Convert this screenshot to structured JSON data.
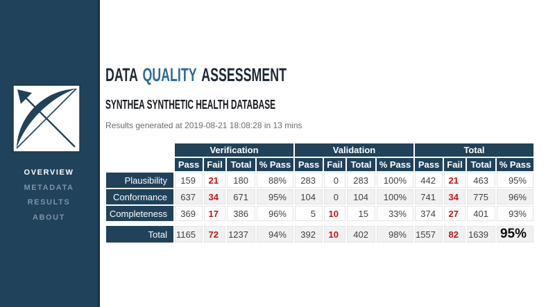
{
  "colors": {
    "sidebar_navy": "#20425a",
    "sidebar_border": "#16334a",
    "title_dark": "#1d2935",
    "title_accent_blue": "#2c6a94",
    "fail_red": "#c31414",
    "row_stripe": "#f1f1f1",
    "inactive_nav": "#7e93a6"
  },
  "sidebar": {
    "logo": {
      "icon": "bow-and-arrow-logo"
    },
    "nav": [
      {
        "label": "OVERVIEW",
        "active": true
      },
      {
        "label": "METADATA",
        "active": false
      },
      {
        "label": "RESULTS",
        "active": false
      },
      {
        "label": "ABOUT",
        "active": false
      }
    ]
  },
  "header": {
    "title_part1": "DATA",
    "title_part2": "QUALITY",
    "title_part3": "ASSESSMENT",
    "subtitle": "SYNTHEA SYNTHETIC HEALTH DATABASE",
    "generated": "Results generated at 2019-08-21 18:08:28 in 13 mins"
  },
  "table": {
    "groups": [
      "Verification",
      "Validation",
      "Total"
    ],
    "subheaders": [
      "Pass",
      "Fail",
      "Total",
      "% Pass"
    ],
    "rows": [
      {
        "label": "Plausibility",
        "values": [
          159,
          21,
          180,
          "88%",
          283,
          0,
          283,
          "100%",
          442,
          21,
          463,
          "95%"
        ]
      },
      {
        "label": "Conformance",
        "values": [
          637,
          34,
          671,
          "95%",
          104,
          0,
          104,
          "100%",
          741,
          34,
          775,
          "96%"
        ]
      },
      {
        "label": "Completeness",
        "values": [
          369,
          17,
          386,
          "96%",
          5,
          10,
          15,
          "33%",
          374,
          27,
          401,
          "93%"
        ]
      }
    ],
    "total_row": {
      "label": "Total",
      "values": [
        1165,
        72,
        1237,
        "94%",
        392,
        10,
        402,
        "98%",
        1557,
        82,
        1639,
        "95%"
      ]
    }
  }
}
